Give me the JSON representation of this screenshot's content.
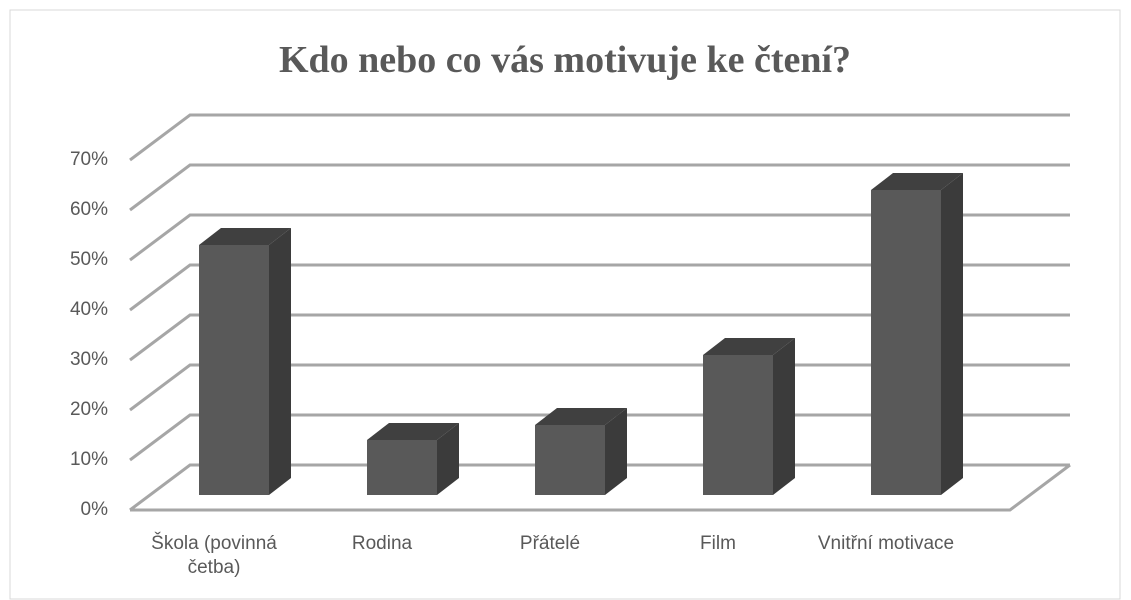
{
  "chart_data": {
    "type": "bar3d",
    "title": "Kdo nebo co vás motivuje ke čtení?",
    "categories": [
      "Škola (povinná četba)",
      "Rodina",
      "Přátelé",
      "Film",
      "Vnitřní motivace"
    ],
    "values": [
      50,
      11,
      14,
      28,
      61
    ],
    "color": "#595959",
    "ylim": [
      0,
      70
    ],
    "yticks": [
      {
        "value": 0,
        "label": "0%"
      },
      {
        "value": 10,
        "label": "10%"
      },
      {
        "value": 20,
        "label": "20%"
      },
      {
        "value": 30,
        "label": "30%"
      },
      {
        "value": 40,
        "label": "40%"
      },
      {
        "value": 50,
        "label": "50%"
      },
      {
        "value": 60,
        "label": "60%"
      },
      {
        "value": 70,
        "label": "70%"
      }
    ],
    "grid": true
  }
}
